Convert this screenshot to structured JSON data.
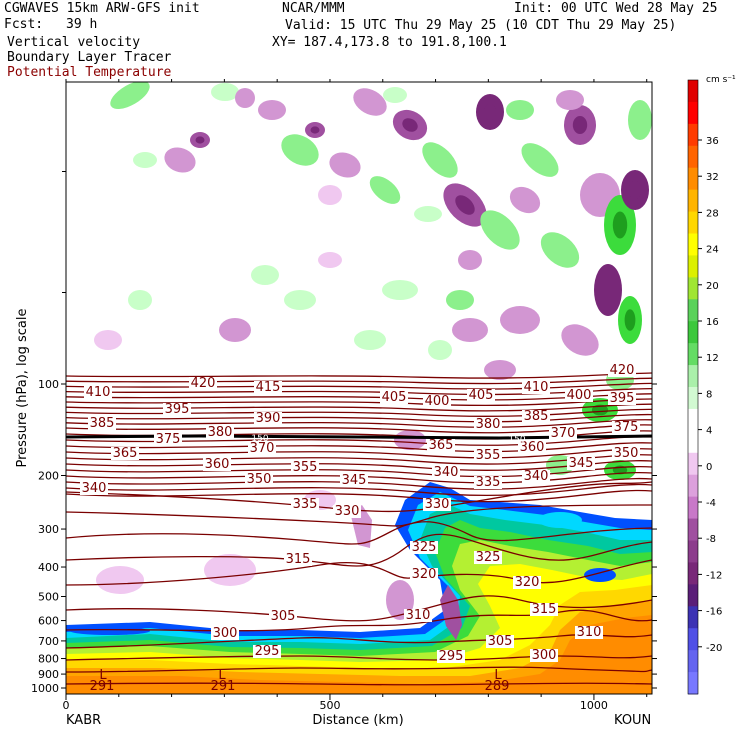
{
  "header": {
    "model": "CGWAVES 15km ARW-GFS init",
    "fcst_label": "Fcst:",
    "fcst_value": "39 h",
    "field1": "Vertical velocity",
    "field2": "Boundary Layer Tracer",
    "field3": "Potential Temperature",
    "org": "NCAR/MMM",
    "init": "Init: 00 UTC Wed 28 May 25",
    "valid": "Valid: 15 UTC Thu 29 May 25 (10 CDT Thu 29 May 25)",
    "xy": "XY= 187.4,173.8 to 191.8,100.1"
  },
  "colors": {
    "theta": "#7a0000",
    "tropopause": "#000000",
    "pos1": "#c8ffc8",
    "pos2": "#8cf08c",
    "pos3": "#3cdc3c",
    "neg1": "#f0c8f0",
    "neg2": "#d296d2",
    "neg3": "#a050a0",
    "neg4": "#782878",
    "tracer": [
      "#ff8c00",
      "#ffa500",
      "#ffd800",
      "#ffff00",
      "#b4f032",
      "#3cdc3c",
      "#00c8a0",
      "#00d8ff",
      "#0050ff"
    ]
  },
  "chart_data": {
    "type": "heatmap",
    "title": "",
    "xlabel": "Distance (km)",
    "ylabel": "Pressure (hPa), log scale",
    "x_ticks": [
      0,
      500,
      1000
    ],
    "x_range": [
      0,
      1110
    ],
    "y_ticks": [
      100,
      200,
      300,
      400,
      500,
      600,
      700,
      800,
      900,
      1000
    ],
    "y_log": true,
    "x_endpoints": {
      "left": "KABR",
      "right": "KOUN"
    },
    "colorbar": {
      "unit": "cm s⁻¹",
      "labels": [
        "36",
        "32",
        "28",
        "24",
        "20",
        "16",
        "12",
        "8",
        "4",
        "0",
        "-4",
        "-8",
        "-12",
        "-16",
        "-20"
      ],
      "colors": [
        "#e00000",
        "#ff0000",
        "#ff3c00",
        "#ff6400",
        "#ff8c00",
        "#ffb400",
        "#ffd700",
        "#ffff00",
        "#dcf000",
        "#a0e632",
        "#5ad25a",
        "#3cc83c",
        "#64dc64",
        "#aaf0aa",
        "#d2fad2",
        "#ffffff",
        "#ffffff",
        "#f0c8f0",
        "#dca0dc",
        "#c878c8",
        "#a050a0",
        "#8c3c8c",
        "#782878",
        "#5a1e78",
        "#3c32b4",
        "#5050e6",
        "#6464f0",
        "#7878ff"
      ]
    },
    "theta_labels": [
      {
        "v": "410",
        "x": 98,
        "y": 396
      },
      {
        "v": "420",
        "x": 203,
        "y": 387
      },
      {
        "v": "415",
        "x": 268,
        "y": 391
      },
      {
        "v": "405",
        "x": 394,
        "y": 401
      },
      {
        "v": "400",
        "x": 437,
        "y": 405
      },
      {
        "v": "405",
        "x": 481,
        "y": 399
      },
      {
        "v": "410",
        "x": 536,
        "y": 391
      },
      {
        "v": "420",
        "x": 622,
        "y": 374
      },
      {
        "v": "400",
        "x": 579,
        "y": 399
      },
      {
        "v": "395",
        "x": 622,
        "y": 402
      },
      {
        "v": "395",
        "x": 177,
        "y": 413
      },
      {
        "v": "390",
        "x": 268,
        "y": 422
      },
      {
        "v": "385",
        "x": 102,
        "y": 427
      },
      {
        "v": "380",
        "x": 488,
        "y": 428
      },
      {
        "v": "385",
        "x": 536,
        "y": 420
      },
      {
        "v": "375",
        "x": 626,
        "y": 431
      },
      {
        "v": "375",
        "x": 168,
        "y": 443
      },
      {
        "v": "380",
        "x": 220,
        "y": 436
      },
      {
        "v": "370",
        "x": 563,
        "y": 437
      },
      {
        "v": "370",
        "x": 262,
        "y": 452
      },
      {
        "v": "365",
        "x": 125,
        "y": 457
      },
      {
        "v": "365",
        "x": 441,
        "y": 449
      },
      {
        "v": "355",
        "x": 488,
        "y": 459
      },
      {
        "v": "360",
        "x": 532,
        "y": 451
      },
      {
        "v": "350",
        "x": 626,
        "y": 457
      },
      {
        "v": "360",
        "x": 217,
        "y": 468
      },
      {
        "v": "355",
        "x": 305,
        "y": 471
      },
      {
        "v": "345",
        "x": 581,
        "y": 467
      },
      {
        "v": "340",
        "x": 446,
        "y": 476
      },
      {
        "v": "350",
        "x": 259,
        "y": 483
      },
      {
        "v": "345",
        "x": 354,
        "y": 484
      },
      {
        "v": "335",
        "x": 488,
        "y": 486
      },
      {
        "v": "340",
        "x": 536,
        "y": 480
      },
      {
        "v": "340",
        "x": 94,
        "y": 492
      },
      {
        "v": "335",
        "x": 305,
        "y": 508
      },
      {
        "v": "330",
        "x": 347,
        "y": 515
      },
      {
        "v": "330",
        "x": 437,
        "y": 508
      },
      {
        "v": "325",
        "x": 424,
        "y": 551
      },
      {
        "v": "325",
        "x": 488,
        "y": 561
      },
      {
        "v": "315",
        "x": 298,
        "y": 563
      },
      {
        "v": "320",
        "x": 424,
        "y": 578
      },
      {
        "v": "320",
        "x": 527,
        "y": 586
      },
      {
        "v": "315",
        "x": 544,
        "y": 613
      },
      {
        "v": "310",
        "x": 418,
        "y": 619
      },
      {
        "v": "305",
        "x": 283,
        "y": 620
      },
      {
        "v": "300",
        "x": 225,
        "y": 637
      },
      {
        "v": "310",
        "x": 589,
        "y": 636
      },
      {
        "v": "305",
        "x": 500,
        "y": 645
      },
      {
        "v": "295",
        "x": 267,
        "y": 655
      },
      {
        "v": "295",
        "x": 451,
        "y": 660
      },
      {
        "v": "300",
        "x": 544,
        "y": 659
      }
    ],
    "surface_labels": [
      {
        "v": "291",
        "x": 102,
        "y": 690
      },
      {
        "v": "291",
        "x": 223,
        "y": 690
      },
      {
        "v": "289",
        "x": 497,
        "y": 690
      }
    ],
    "low_markers": [
      {
        "v": "L",
        "x": 103,
        "y": 679
      },
      {
        "v": "L",
        "x": 222,
        "y": 679
      },
      {
        "v": "L",
        "x": 498,
        "y": 679
      }
    ],
    "tropopause_label": "150"
  }
}
